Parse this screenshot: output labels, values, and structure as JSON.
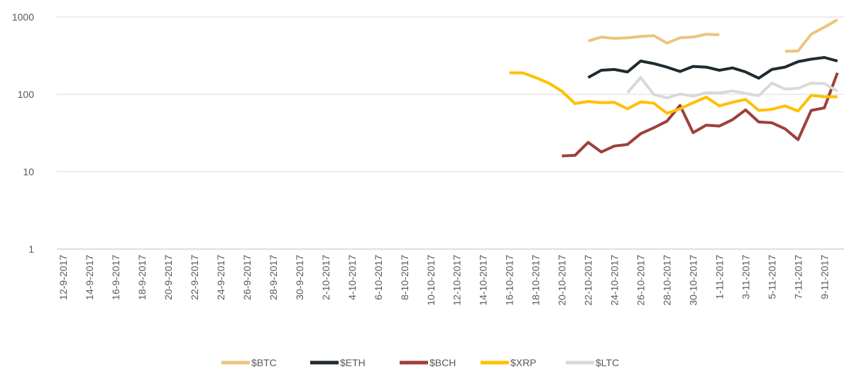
{
  "chart_data": {
    "type": "line",
    "log_scale": true,
    "grid": true,
    "legend": "bottom",
    "categories": [
      "12-9-2017",
      null,
      "14-9-2017",
      null,
      "16-9-2017",
      null,
      "18-9-2017",
      null,
      "20-9-2017",
      null,
      "22-9-2017",
      null,
      "24-9-2017",
      null,
      "26-9-2017",
      null,
      "28-9-2017",
      null,
      "30-9-2017",
      null,
      "2-10-2017",
      null,
      "4-10-2017",
      null,
      "6-10-2017",
      null,
      "8-10-2017",
      null,
      "10-10-2017",
      null,
      "12-10-2017",
      null,
      "14-10-2017",
      null,
      "16-10-2017",
      null,
      "18-10-2017",
      null,
      "20-10-2017",
      null,
      "22-10-2017",
      null,
      "24-10-2017",
      null,
      "26-10-2017",
      null,
      "28-10-2017",
      null,
      "30-10-2017",
      null,
      "1-11-2017",
      null,
      "3-11-2017",
      null,
      "5-11-2017",
      null,
      "7-11-2017",
      null,
      "9-11-2017",
      null
    ],
    "ylim": [
      1,
      1000
    ],
    "yticks": [
      1,
      10,
      100,
      1000
    ],
    "series": [
      {
        "name": "$BTC",
        "color": "#EBC57E",
        "values": [
          null,
          null,
          null,
          null,
          null,
          null,
          null,
          null,
          null,
          null,
          null,
          null,
          null,
          null,
          null,
          null,
          null,
          null,
          null,
          null,
          null,
          null,
          null,
          null,
          null,
          null,
          null,
          null,
          null,
          null,
          null,
          null,
          null,
          null,
          null,
          null,
          null,
          null,
          null,
          null,
          490,
          550,
          530,
          540,
          560,
          575,
          460,
          540,
          550,
          600,
          590,
          null,
          null,
          null,
          null,
          360,
          365,
          600,
          740,
          920
        ]
      },
      {
        "name": "$ETH",
        "color": "#1F2B30",
        "values": [
          null,
          null,
          null,
          null,
          null,
          null,
          null,
          null,
          null,
          null,
          null,
          null,
          null,
          null,
          null,
          null,
          null,
          null,
          null,
          null,
          null,
          null,
          null,
          null,
          null,
          null,
          null,
          null,
          null,
          null,
          null,
          null,
          null,
          null,
          null,
          null,
          null,
          null,
          null,
          null,
          165,
          205,
          210,
          195,
          270,
          250,
          225,
          198,
          230,
          225,
          205,
          220,
          195,
          162,
          210,
          225,
          265,
          285,
          300,
          270
        ]
      },
      {
        "name": "$BCH",
        "color": "#9E3F3C",
        "values": [
          null,
          null,
          null,
          null,
          null,
          null,
          null,
          null,
          null,
          null,
          null,
          null,
          null,
          null,
          null,
          null,
          null,
          null,
          null,
          null,
          null,
          null,
          null,
          null,
          null,
          null,
          null,
          null,
          null,
          null,
          null,
          null,
          null,
          null,
          null,
          null,
          null,
          null,
          16,
          16.3,
          24,
          18,
          21.5,
          22.5,
          31,
          37,
          45,
          72,
          32,
          40,
          39,
          47,
          63,
          44,
          43,
          36,
          26,
          62,
          67,
          190
        ]
      },
      {
        "name": "$XRP",
        "color": "#FFC000",
        "values": [
          null,
          null,
          null,
          null,
          null,
          null,
          null,
          null,
          null,
          null,
          null,
          null,
          null,
          null,
          null,
          null,
          null,
          null,
          null,
          null,
          null,
          null,
          null,
          null,
          null,
          null,
          null,
          null,
          null,
          null,
          null,
          null,
          null,
          null,
          190,
          190,
          165,
          140,
          110,
          76,
          81,
          78,
          79,
          65,
          80,
          77,
          57,
          65,
          78,
          92,
          71,
          79,
          86,
          62,
          64,
          71,
          61,
          97,
          93,
          93
        ]
      },
      {
        "name": "$LTC",
        "color": "#D9D9D9",
        "values": [
          null,
          null,
          null,
          null,
          null,
          null,
          null,
          null,
          null,
          null,
          null,
          null,
          null,
          null,
          null,
          null,
          null,
          null,
          null,
          null,
          null,
          null,
          null,
          null,
          null,
          null,
          null,
          null,
          null,
          null,
          null,
          null,
          null,
          null,
          null,
          null,
          null,
          null,
          null,
          null,
          null,
          null,
          null,
          105,
          165,
          100,
          90,
          101,
          95,
          105,
          104,
          111,
          103,
          96,
          140,
          117,
          120,
          140,
          138,
          110
        ]
      }
    ]
  }
}
